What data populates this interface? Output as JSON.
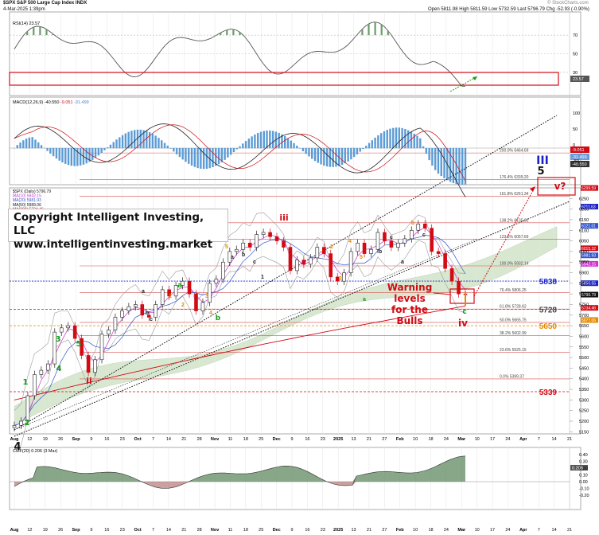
{
  "header": {
    "symbol": "$SPX S&P 500 Large Cap Index INDX",
    "date": "4-Mar-2025 1:39pm",
    "ohlc": "Open 5811.98 High 5811.59 Low 5732.59 Last 5796.79 Chg -52.93 (-0.90%)",
    "brand": "© StockCharts.com"
  },
  "copyright": {
    "line1": "Copyright Intelligent Investing, LLC",
    "line2": "www.intelligentinvesting.market"
  },
  "warning": "Warning levels for the Bulls",
  "colors": {
    "red": "#d20a14",
    "orange": "#e48a00",
    "green": "#1a9a1a",
    "blue": "#1a22c8",
    "grey": "#444444",
    "macd_hist": "#5b9bd5",
    "cloud": "#cfe3c5",
    "cmf": "#5f8a60",
    "cmf_neg": "#b88080"
  },
  "rsi": {
    "label": "RSI(14) 23.57",
    "levels": [
      "70",
      "50",
      "30"
    ],
    "last": "23.57"
  },
  "macd": {
    "label_prefix": "MACD(12,26,9)",
    "macd_val": "-40.550",
    "signal_val": "-9.051",
    "hist_val": "-31.499",
    "axis": [
      "100",
      "50",
      "0",
      "-50"
    ],
    "right_vals": [
      "-9.051",
      "-31.499",
      "-40.550"
    ]
  },
  "price_legend": [
    {
      "text": "$SPX (Daily) 5796.79",
      "color": "#111111"
    },
    {
      "text": "MA(10) 5942.15",
      "color": "#cc33cc"
    },
    {
      "text": "MA(20) 5981.93",
      "color": "#3355cc"
    },
    {
      "text": "MA(50) 5989.06",
      "color": "#111111"
    },
    {
      "text": "MA(200) 5734.46",
      "color": "#d20a14"
    }
  ],
  "price_axis": [
    "6250",
    "6200",
    "6150",
    "6100",
    "6050",
    "6000",
    "5950",
    "5900",
    "5850",
    "5800",
    "5750",
    "5700",
    "5650",
    "5600",
    "5550",
    "5500",
    "5450",
    "5400",
    "5350",
    "5300",
    "5250",
    "5200",
    "5150"
  ],
  "price_right_tags": [
    "6299.59",
    "6211.63",
    "6121.01",
    "6015.32",
    "5981.93",
    "5942.15",
    "5850.55",
    "5796.79",
    "5734.46",
    "5677.06"
  ],
  "fib_levels": [
    {
      "label": "200.0% 6464.69"
    },
    {
      "label": "176.4% 6339.20"
    },
    {
      "label": "161.8% 6261.34"
    },
    {
      "label": "138.2% 6135.61"
    },
    {
      "label": "123.6% 6057.69"
    },
    {
      "label": "100.0% 5932.14"
    },
    {
      "label": "76.4% 5806.25"
    },
    {
      "label": "61.8% 5728.62"
    },
    {
      "label": "50.0% 5665.75"
    },
    {
      "label": "38.2% 5602.99"
    },
    {
      "label": "23.6% 5525.15"
    },
    {
      "label": "0.0% 5399.37"
    }
  ],
  "key_levels": [
    {
      "text": "5838",
      "color": "#1a22c8"
    },
    {
      "text": "5728",
      "color": "#444444"
    },
    {
      "text": "5650",
      "color": "#e48a00"
    },
    {
      "text": "5339",
      "color": "#d20a14"
    }
  ],
  "wave_labels": [
    {
      "text": "III",
      "color": "#1a22c8"
    },
    {
      "text": "5",
      "color": "#111111"
    },
    {
      "text": "v?",
      "color": "#d20a14"
    },
    {
      "text": "iv",
      "color": "#d20a14"
    },
    {
      "text": "iii",
      "color": "#d20a14"
    },
    {
      "text": "ii",
      "color": "#d20a14"
    },
    {
      "text": "4",
      "color": "#111111"
    },
    {
      "text": "1",
      "color": "#1a9a1a"
    },
    {
      "text": "2",
      "color": "#1a9a1a"
    },
    {
      "text": "3",
      "color": "#1a9a1a"
    },
    {
      "text": "4",
      "color": "#1a9a1a"
    },
    {
      "text": "5",
      "color": "#1a9a1a"
    },
    {
      "text": "a",
      "color": "#1a9a1a"
    },
    {
      "text": "b",
      "color": "#1a9a1a"
    },
    {
      "text": "c",
      "color": "#1a9a1a"
    }
  ],
  "small_labels": [
    "a",
    "b",
    "c",
    "1",
    "2",
    "3",
    "4",
    "5",
    "a",
    "b",
    "c",
    "1",
    "2",
    "3",
    "4",
    "5",
    "a",
    "b",
    "c",
    "a",
    "b",
    "c"
  ],
  "x_axis": [
    "Aug",
    "12",
    "19",
    "26",
    "Sep",
    "9",
    "16",
    "23",
    "Oct",
    "7",
    "14",
    "21",
    "28",
    "Nov",
    "11",
    "18",
    "25",
    "Dec",
    "9",
    "16",
    "23",
    "2025",
    "13",
    "21",
    "27",
    "Feb",
    "10",
    "18",
    "24",
    "Mar",
    "10",
    "17",
    "24",
    "Apr",
    "7",
    "14",
    "21"
  ],
  "cmf": {
    "label": "CMF(20) 0.206 (3 Mar)",
    "axis": [
      "0.40",
      "0.30",
      "0.20",
      "0.10",
      "0.00",
      "-0.10",
      "-0.20"
    ],
    "last": "0.206"
  },
  "chart_data": {
    "type": "line",
    "title": "$SPX S&P 500 Large Cap Index",
    "series": [
      {
        "name": "$SPX (Daily)",
        "values": [
          5180,
          5200,
          5320,
          5420,
          5440,
          5470,
          5620,
          5640,
          5650,
          5590,
          5510,
          5430,
          5490,
          5610,
          5630,
          5690,
          5720,
          5740,
          5750,
          5700,
          5690,
          5750,
          5820,
          5790,
          5840,
          5860,
          5800,
          5720,
          5760,
          5850,
          5870,
          5950,
          6000,
          6010,
          6040,
          6020,
          6080,
          6090,
          6070,
          6050,
          6020,
          5910,
          5960,
          5940,
          5970,
          6020,
          5990,
          5880,
          5860,
          5900,
          6000,
          6040,
          5990,
          6010,
          6090,
          6050,
          6020,
          6040,
          6060,
          6100,
          6130,
          6110,
          6000,
          5990,
          5920,
          5860,
          5800,
          5797
        ],
        "dates_start": "Aug 5",
        "dates_end": "Mar 4"
      }
    ],
    "fibonacci": [
      6464.69,
      6339.2,
      6261.34,
      6135.61,
      6057.69,
      5932.14,
      5806.25,
      5728.62,
      5665.75,
      5602.99,
      5525.15,
      5399.37
    ],
    "levels": [
      5838,
      5728,
      5650,
      5339
    ],
    "moving_averages": {
      "MA(10)": 5942.15,
      "MA(20)": 5981.93,
      "MA(50)": 5989.06,
      "MA(200)": 5734.46
    },
    "ylim": [
      5140,
      6300
    ],
    "ylabel": "",
    "xlabel": ""
  }
}
